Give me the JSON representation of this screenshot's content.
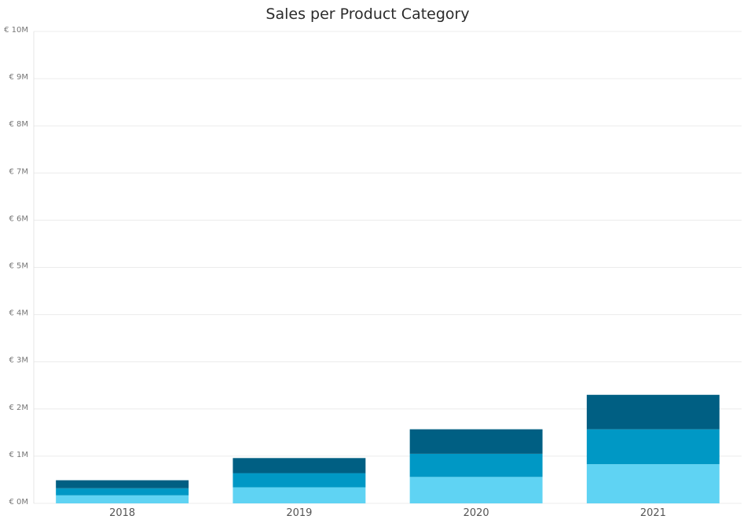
{
  "chart_data": {
    "type": "bar",
    "stacked": true,
    "title": "Sales per Product Category",
    "xlabel": "",
    "ylabel": "",
    "categories": [
      "2018",
      "2019",
      "2020",
      "2021"
    ],
    "series": [
      {
        "values": [
          0.17,
          0.34,
          0.56,
          0.83
        ],
        "color": "#5fd3f3"
      },
      {
        "values": [
          0.15,
          0.3,
          0.49,
          0.74
        ],
        "color": "#0098c5"
      },
      {
        "values": [
          0.17,
          0.32,
          0.52,
          0.73
        ],
        "color": "#005f83"
      }
    ],
    "ylim": [
      0,
      10
    ],
    "yticks": [
      0,
      1,
      2,
      3,
      4,
      5,
      6,
      7,
      8,
      9,
      10
    ],
    "ytick_labels": [
      "€ 0M",
      "€ 1M",
      "€ 2M",
      "€ 3M",
      "€ 4M",
      "€ 5M",
      "€ 6M",
      "€ 7M",
      "€ 8M",
      "€ 9M",
      "€ 10M"
    ],
    "grid": true,
    "legend": "none"
  }
}
